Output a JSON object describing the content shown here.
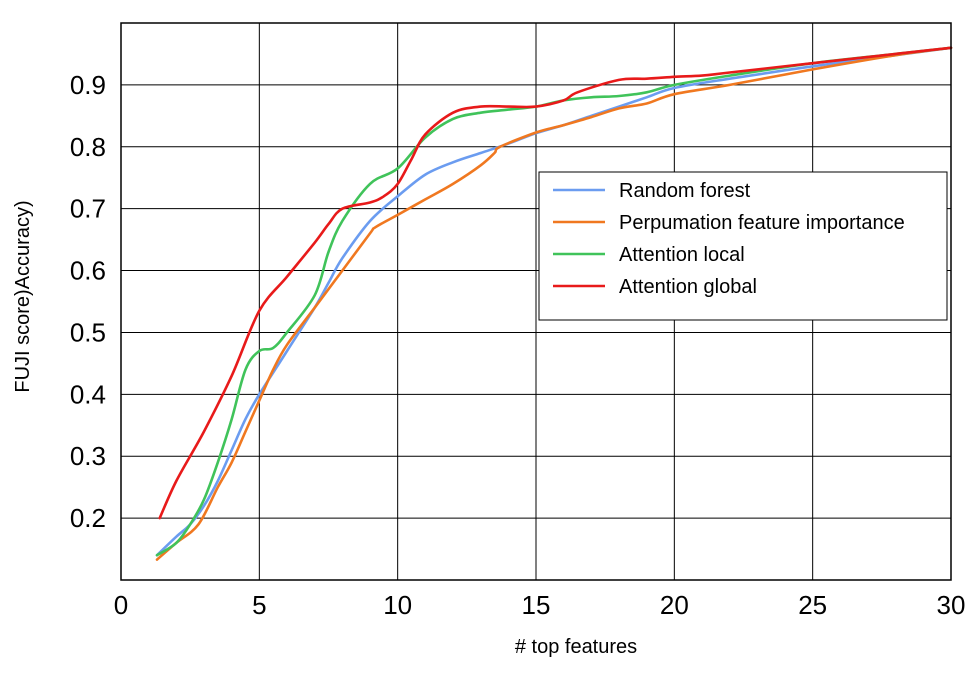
{
  "chart_data": {
    "type": "line",
    "xlabel": "# top features",
    "ylabel": "FUJI score)Accuracy)",
    "xlim": [
      0,
      30
    ],
    "ylim": [
      0.1,
      1.0
    ],
    "xticks": [
      0,
      5,
      10,
      15,
      20,
      25,
      30
    ],
    "yticks": [
      0.2,
      0.3,
      0.4,
      0.5,
      0.6,
      0.7,
      0.8,
      0.9
    ],
    "grid": true,
    "legend_position": "right-middle",
    "series": [
      {
        "name": "Random forest",
        "color": "#6b9cf0",
        "x": [
          1.3,
          2,
          2.5,
          3,
          3.5,
          4,
          4.5,
          5,
          6,
          7,
          7.5,
          8,
          9,
          10,
          11,
          12,
          13,
          14,
          15,
          16,
          17,
          18,
          19,
          20,
          22,
          25,
          28,
          30
        ],
        "y": [
          0.14,
          0.17,
          0.19,
          0.22,
          0.26,
          0.31,
          0.36,
          0.4,
          0.47,
          0.54,
          0.58,
          0.62,
          0.68,
          0.72,
          0.755,
          0.775,
          0.79,
          0.805,
          0.822,
          0.835,
          0.85,
          0.865,
          0.88,
          0.895,
          0.91,
          0.93,
          0.948,
          0.96
        ]
      },
      {
        "name": "Perpumation feature importance",
        "color": "#f07820",
        "x": [
          1.3,
          2,
          2.8,
          3.5,
          4,
          4.5,
          5,
          5.5,
          6,
          7,
          8,
          9,
          9.2,
          10,
          11,
          12,
          13,
          13.5,
          13.7,
          15,
          16,
          17,
          18,
          19,
          20,
          22,
          25,
          28,
          30
        ],
        "y": [
          0.133,
          0.16,
          0.19,
          0.25,
          0.29,
          0.34,
          0.39,
          0.44,
          0.48,
          0.54,
          0.6,
          0.66,
          0.67,
          0.69,
          0.715,
          0.74,
          0.77,
          0.79,
          0.8,
          0.823,
          0.835,
          0.848,
          0.862,
          0.87,
          0.885,
          0.9,
          0.925,
          0.948,
          0.96
        ]
      },
      {
        "name": "Attention local",
        "color": "#40c35a",
        "x": [
          1.3,
          2,
          2.5,
          3,
          3.5,
          4,
          4.5,
          5,
          5.5,
          6,
          7,
          7.5,
          8,
          9,
          10,
          11,
          12,
          13,
          14,
          15,
          16,
          17,
          18,
          19,
          20,
          22,
          25,
          28,
          30
        ],
        "y": [
          0.14,
          0.16,
          0.19,
          0.23,
          0.29,
          0.36,
          0.44,
          0.47,
          0.475,
          0.5,
          0.56,
          0.63,
          0.68,
          0.74,
          0.765,
          0.815,
          0.845,
          0.855,
          0.86,
          0.865,
          0.875,
          0.88,
          0.882,
          0.888,
          0.9,
          0.915,
          0.935,
          0.95,
          0.96
        ]
      },
      {
        "name": "Attention global",
        "color": "#e81a1a",
        "x": [
          1.4,
          2,
          3,
          4,
          5,
          6,
          7,
          7.5,
          8,
          9,
          9.5,
          10,
          10.5,
          11,
          12,
          13,
          14,
          15,
          16,
          16.5,
          18,
          19,
          20,
          21,
          22,
          25,
          28,
          30
        ],
        "y": [
          0.2,
          0.26,
          0.34,
          0.43,
          0.535,
          0.59,
          0.645,
          0.675,
          0.7,
          0.71,
          0.72,
          0.74,
          0.78,
          0.82,
          0.855,
          0.865,
          0.865,
          0.865,
          0.875,
          0.888,
          0.908,
          0.91,
          0.913,
          0.915,
          0.92,
          0.935,
          0.95,
          0.96
        ]
      }
    ]
  }
}
